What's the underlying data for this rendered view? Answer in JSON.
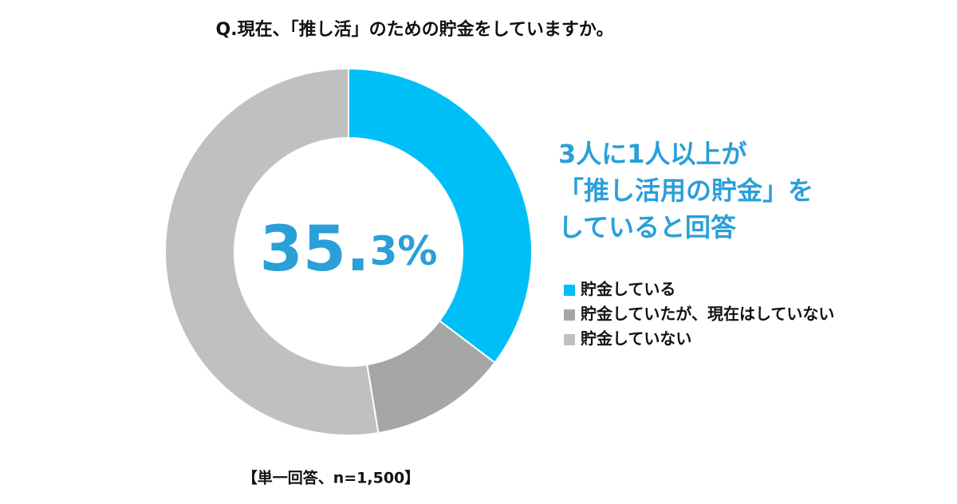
{
  "chart_data": {
    "type": "donut",
    "title": "Q.現在、「推し活」のための貯金をしていますか。",
    "categories": [
      "貯金している",
      "貯金していたが、現在はしていない",
      "貯金していない"
    ],
    "values": [
      35.3,
      12.1,
      52.6
    ],
    "value_labels": [
      "35.3%",
      null,
      null
    ],
    "colors": [
      "#00bff7",
      "#a6a6a6",
      "#c0c0c0"
    ],
    "annotation": [
      "3人に1人以上が",
      "「推し活用の貯金」を",
      "していると回答"
    ],
    "note": "【単一回答、n=1,500】"
  }
}
